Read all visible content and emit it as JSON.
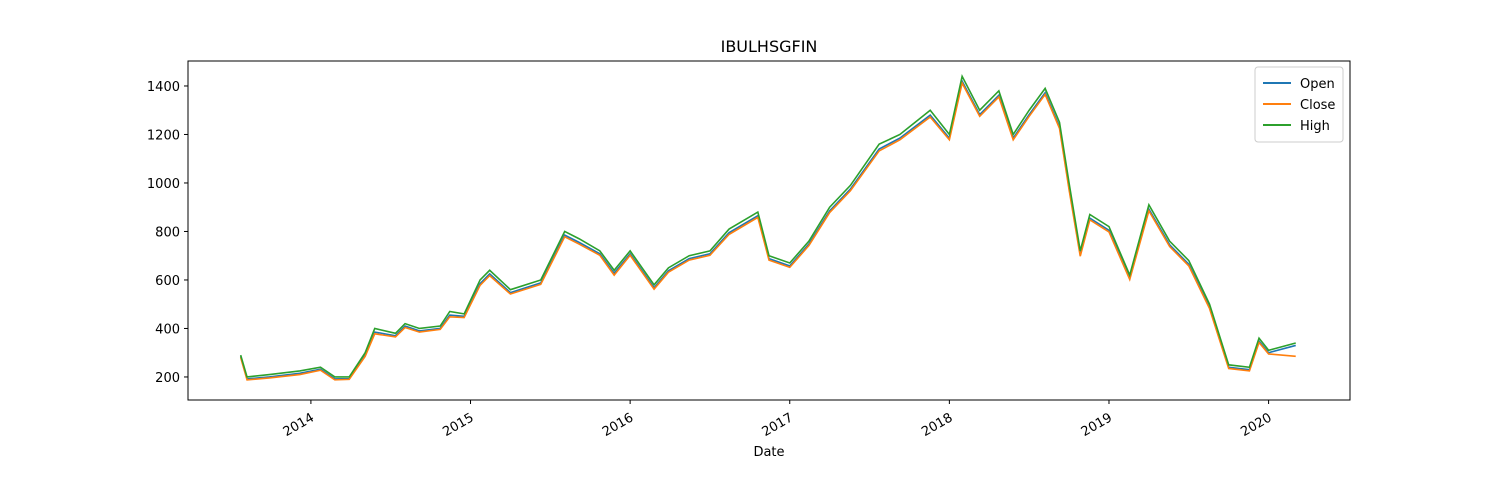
{
  "chart_data": {
    "type": "line",
    "title": "IBULHSGFIN",
    "x_label": "Date",
    "x": [
      2013.56,
      2013.6,
      2013.74,
      2013.93,
      2014.06,
      2014.15,
      2014.24,
      2014.34,
      2014.4,
      2014.53,
      2014.59,
      2014.68,
      2014.81,
      2014.87,
      2014.96,
      2015.06,
      2015.12,
      2015.25,
      2015.44,
      2015.59,
      2015.68,
      2015.81,
      2015.9,
      2016.0,
      2016.15,
      2016.24,
      2016.37,
      2016.5,
      2016.62,
      2016.8,
      2016.87,
      2017.0,
      2017.12,
      2017.25,
      2017.38,
      2017.56,
      2017.69,
      2017.88,
      2018.0,
      2018.08,
      2018.19,
      2018.31,
      2018.4,
      2018.5,
      2018.6,
      2018.69,
      2018.75,
      2018.82,
      2018.88,
      2019.0,
      2019.13,
      2019.25,
      2019.38,
      2019.5,
      2019.63,
      2019.75,
      2019.88,
      2019.94,
      2020.0,
      2020.17
    ],
    "series": [
      {
        "name": "Open",
        "color": "#1f77b4",
        "values": [
          285,
          192,
          200,
          215,
          232,
          192,
          193,
          290,
          385,
          370,
          410,
          390,
          400,
          455,
          450,
          585,
          625,
          548,
          588,
          785,
          755,
          708,
          628,
          708,
          568,
          638,
          688,
          708,
          795,
          865,
          688,
          658,
          748,
          885,
          975,
          1140,
          1185,
          1280,
          1185,
          1420,
          1282,
          1362,
          1185,
          1282,
          1372,
          1232,
          980,
          705,
          855,
          805,
          608,
          892,
          745,
          665,
          488,
          240,
          230,
          348,
          300,
          330
        ]
      },
      {
        "name": "Close",
        "color": "#ff7f0e",
        "values": [
          280,
          188,
          196,
          210,
          228,
          188,
          190,
          285,
          378,
          365,
          404,
          385,
          396,
          448,
          445,
          578,
          618,
          542,
          582,
          778,
          748,
          702,
          620,
          702,
          562,
          632,
          682,
          702,
          788,
          858,
          682,
          652,
          742,
          878,
          968,
          1132,
          1178,
          1272,
          1178,
          1412,
          1275,
          1355,
          1178,
          1275,
          1365,
          1225,
          972,
          698,
          848,
          798,
          602,
          885,
          738,
          658,
          482,
          235,
          225,
          342,
          295,
          285
        ]
      },
      {
        "name": "High",
        "color": "#2ca02c",
        "values": [
          290,
          200,
          210,
          225,
          240,
          200,
          200,
          300,
          400,
          380,
          420,
          400,
          410,
          470,
          460,
          600,
          640,
          560,
          600,
          800,
          770,
          720,
          640,
          720,
          580,
          650,
          700,
          720,
          810,
          880,
          700,
          670,
          760,
          900,
          990,
          1160,
          1200,
          1300,
          1200,
          1440,
          1300,
          1380,
          1200,
          1300,
          1390,
          1250,
          1000,
          720,
          870,
          820,
          620,
          910,
          760,
          680,
          500,
          250,
          240,
          360,
          310,
          340
        ]
      }
    ],
    "xlim": [
      2013.23,
      2020.51
    ],
    "xticks": [
      2014,
      2015,
      2016,
      2017,
      2018,
      2019,
      2020
    ],
    "ylim": [
      105,
      1503
    ],
    "yticks": [
      200,
      400,
      600,
      800,
      1000,
      1200,
      1400
    ],
    "legend": "upper right",
    "grid": false
  }
}
